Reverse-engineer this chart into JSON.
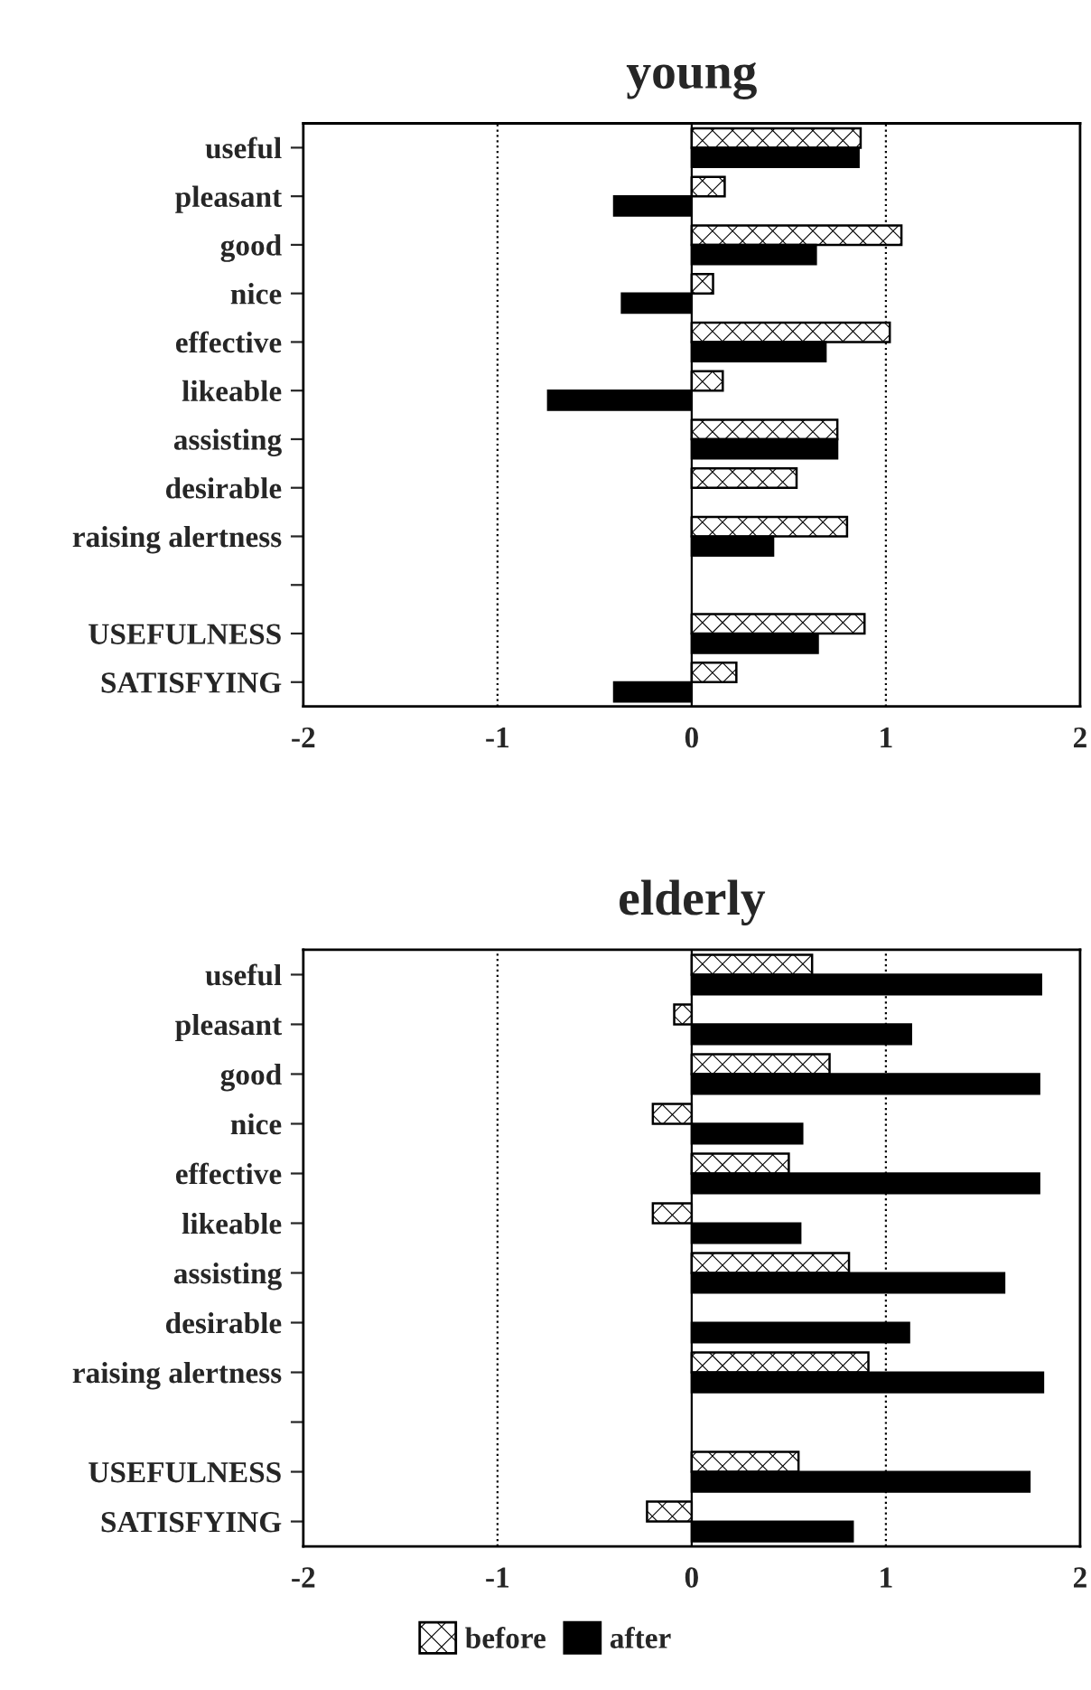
{
  "chart_data": [
    {
      "type": "bar",
      "orientation": "horizontal",
      "title": "young",
      "categories": [
        "useful",
        "pleasant",
        "good",
        "nice",
        "effective",
        "likeable",
        "assisting",
        "desirable",
        "raising alertness",
        null,
        "USEFULNESS",
        "SATISFYING"
      ],
      "series": [
        {
          "color": "#ffffff",
          "values": [
            0.87,
            0.17,
            1.08,
            0.11,
            1.02,
            0.16,
            0.75,
            0.54,
            0.8,
            null,
            0.89,
            0.23
          ]
        },
        {
          "color": "#000000",
          "values": [
            0.86,
            -0.4,
            0.64,
            -0.36,
            0.69,
            -0.74,
            0.75,
            null,
            0.42,
            null,
            0.65,
            -0.4
          ]
        }
      ],
      "xlim": [
        -2,
        2
      ],
      "xticks": [
        -2,
        -1,
        0,
        1,
        2
      ],
      "ref_lines": [
        {
          "axis": "x",
          "value": -1,
          "line_style": "dotted"
        },
        {
          "axis": "x",
          "value": 1,
          "line_style": "dotted"
        },
        {
          "axis": "x",
          "value": 0,
          "line_style": "solid"
        }
      ]
    },
    {
      "type": "bar",
      "orientation": "horizontal",
      "title": "elderly",
      "categories": [
        "useful",
        "pleasant",
        "good",
        "nice",
        "effective",
        "likeable",
        "assisting",
        "desirable",
        "raising alertness",
        null,
        "USEFULNESS",
        "SATISFYING"
      ],
      "series": [
        {
          "name": "before",
          "color": "#ffffff",
          "values": [
            0.62,
            -0.09,
            0.71,
            -0.2,
            0.5,
            -0.2,
            0.81,
            null,
            0.91,
            null,
            0.55,
            -0.23
          ]
        },
        {
          "name": "after",
          "color": "#000000",
          "values": [
            1.8,
            1.13,
            1.79,
            0.57,
            1.79,
            0.56,
            1.61,
            1.12,
            1.81,
            null,
            1.74,
            0.83
          ]
        }
      ],
      "xlim": [
        -2,
        2
      ],
      "xticks": [
        -2,
        -1,
        0,
        1,
        2
      ],
      "legend": "bottom",
      "ref_lines": [
        {
          "axis": "x",
          "value": -1,
          "line_style": "dotted"
        },
        {
          "axis": "x",
          "value": 1,
          "line_style": "dotted"
        },
        {
          "axis": "x",
          "value": 0,
          "line_style": "solid"
        }
      ]
    }
  ]
}
